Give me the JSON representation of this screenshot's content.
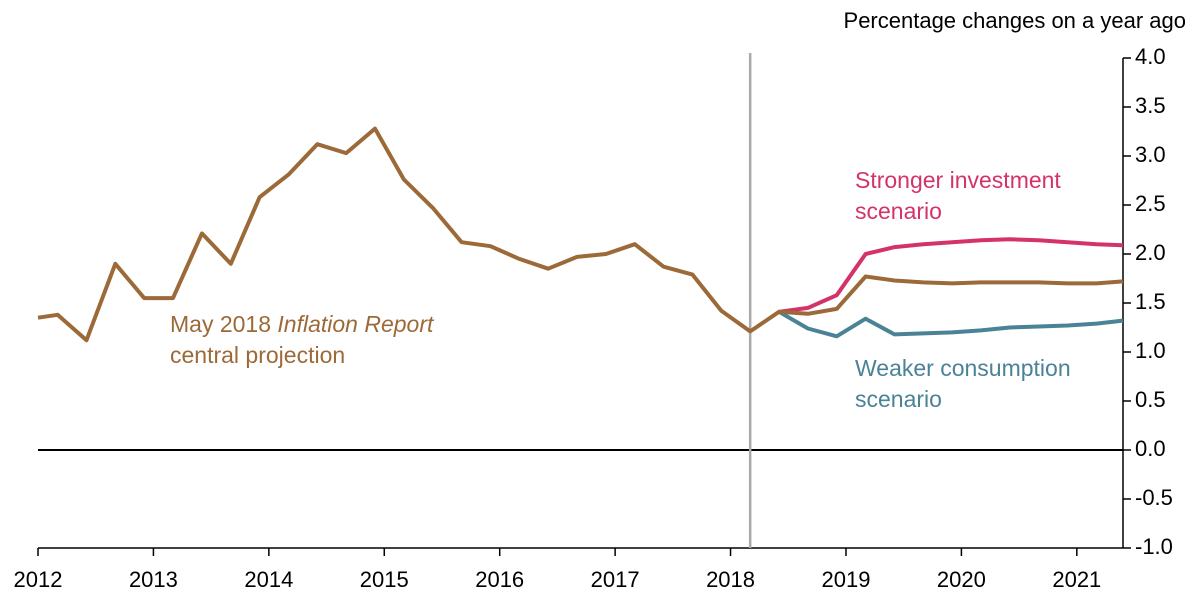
{
  "chart_data": {
    "type": "line",
    "y_axis_label": "Percentage changes on a year ago",
    "x": [
      2012.0,
      2012.17,
      2012.42,
      2012.67,
      2012.92,
      2013.17,
      2013.42,
      2013.67,
      2013.92,
      2014.17,
      2014.42,
      2014.67,
      2014.92,
      2015.17,
      2015.42,
      2015.67,
      2015.92,
      2016.17,
      2016.42,
      2016.67,
      2016.92,
      2017.17,
      2017.42,
      2017.67,
      2017.92,
      2018.17,
      2018.42,
      2018.67,
      2018.92,
      2019.17,
      2019.42,
      2019.67,
      2019.92,
      2020.17,
      2020.42,
      2020.67,
      2020.92,
      2021.17,
      2021.4
    ],
    "series": [
      {
        "label_lines": [
          [
            {
              "text": "May 2018 "
            },
            {
              "text": "Inflation Report",
              "italic": true
            }
          ],
          [
            {
              "text": "central projection"
            }
          ]
        ],
        "color": "#9c6a38",
        "values": [
          1.35,
          1.38,
          1.12,
          1.9,
          1.55,
          1.55,
          2.21,
          1.9,
          2.58,
          2.81,
          3.12,
          3.03,
          3.28,
          2.76,
          2.47,
          2.12,
          2.08,
          1.95,
          1.85,
          1.97,
          2.0,
          2.1,
          1.87,
          1.79,
          1.42,
          1.21,
          1.41,
          1.39,
          1.44,
          1.77,
          1.73,
          1.71,
          1.7,
          1.71,
          1.71,
          1.71,
          1.7,
          1.7,
          1.72
        ]
      },
      {
        "label_lines": [
          [
            {
              "text": "Stronger investment"
            }
          ],
          [
            {
              "text": "scenario"
            }
          ]
        ],
        "color": "#d4336a",
        "values": [
          null,
          null,
          null,
          null,
          null,
          null,
          null,
          null,
          null,
          null,
          null,
          null,
          null,
          null,
          null,
          null,
          null,
          null,
          null,
          null,
          null,
          null,
          null,
          null,
          null,
          null,
          1.41,
          1.45,
          1.58,
          2.0,
          2.07,
          2.1,
          2.12,
          2.14,
          2.15,
          2.14,
          2.12,
          2.1,
          2.09
        ]
      },
      {
        "label_lines": [
          [
            {
              "text": "Weaker consumption"
            }
          ],
          [
            {
              "text": "scenario"
            }
          ]
        ],
        "color": "#4a8296",
        "values": [
          null,
          null,
          null,
          null,
          null,
          null,
          null,
          null,
          null,
          null,
          null,
          null,
          null,
          null,
          null,
          null,
          null,
          null,
          null,
          null,
          null,
          null,
          null,
          null,
          null,
          null,
          1.41,
          1.24,
          1.16,
          1.34,
          1.18,
          1.19,
          1.2,
          1.22,
          1.25,
          1.26,
          1.27,
          1.29,
          1.32
        ]
      }
    ],
    "xlim": [
      2012,
      2021.4
    ],
    "xticks": [
      2012,
      2013,
      2014,
      2015,
      2016,
      2017,
      2018,
      2019,
      2020,
      2021
    ],
    "ylim": [
      -1,
      4
    ],
    "yticks": [
      {
        "value": -1,
        "label": "-1.0"
      },
      -0.5,
      {
        "value": 0,
        "label": "0.0"
      },
      0.5,
      {
        "value": 1,
        "label": "1.0"
      },
      1.5,
      {
        "value": 2,
        "label": "2.0"
      },
      2.5,
      {
        "value": 3,
        "label": "3.0"
      },
      3.5,
      {
        "value": 4,
        "label": "4.0"
      }
    ],
    "y_axis_side": "right",
    "zero_line": true,
    "vline_x": 2018.17,
    "vline_color": "#aaaaaa"
  }
}
